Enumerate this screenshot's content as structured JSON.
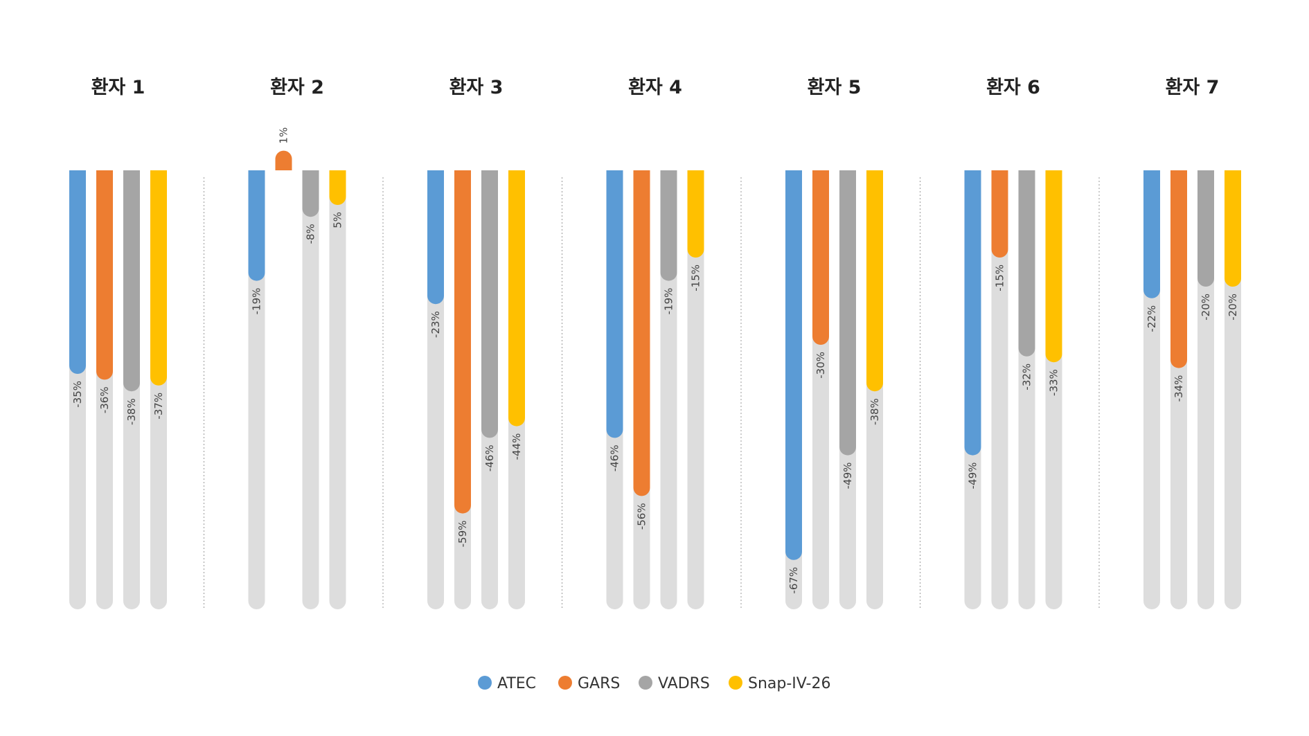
{
  "chart_data": {
    "type": "bar",
    "groups": [
      "환자 1",
      "환자 2",
      "환자 3",
      "환자 4",
      "환자 5",
      "환자 6",
      "환자 7"
    ],
    "series": [
      {
        "name": "ATEC",
        "color": "#5B9BD5",
        "values": [
          -35,
          -19,
          -23,
          -46,
          -67,
          -49,
          -22
        ],
        "labels": [
          "-35%",
          "-19%",
          "-23%",
          "-46%",
          "-67%",
          "-49%",
          "-22%"
        ]
      },
      {
        "name": "GARS",
        "color": "#ED7D31",
        "values": [
          -36,
          1,
          -59,
          -56,
          -30,
          -15,
          -34
        ],
        "labels": [
          "-36%",
          "1%",
          "-59%",
          "-56%",
          "-30%",
          "-15%",
          "-34%"
        ]
      },
      {
        "name": "VADRS",
        "color": "#A5A5A5",
        "values": [
          -38,
          -8,
          -46,
          -19,
          -49,
          -32,
          -20
        ],
        "labels": [
          "-38%",
          "-8%",
          "-46%",
          "-19%",
          "-49%",
          "-32%",
          "-20%"
        ]
      },
      {
        "name": "Snap-IV-26",
        "color": "#FFC000",
        "values": [
          -37,
          5,
          -44,
          -15,
          -38,
          -33,
          -20
        ],
        "labels": [
          "-37%",
          "5%",
          "-44%",
          "-15%",
          "-38%",
          "-33%",
          "-20%"
        ]
      }
    ],
    "track_color": "#DDDDDD",
    "legend_position": "bottom"
  }
}
